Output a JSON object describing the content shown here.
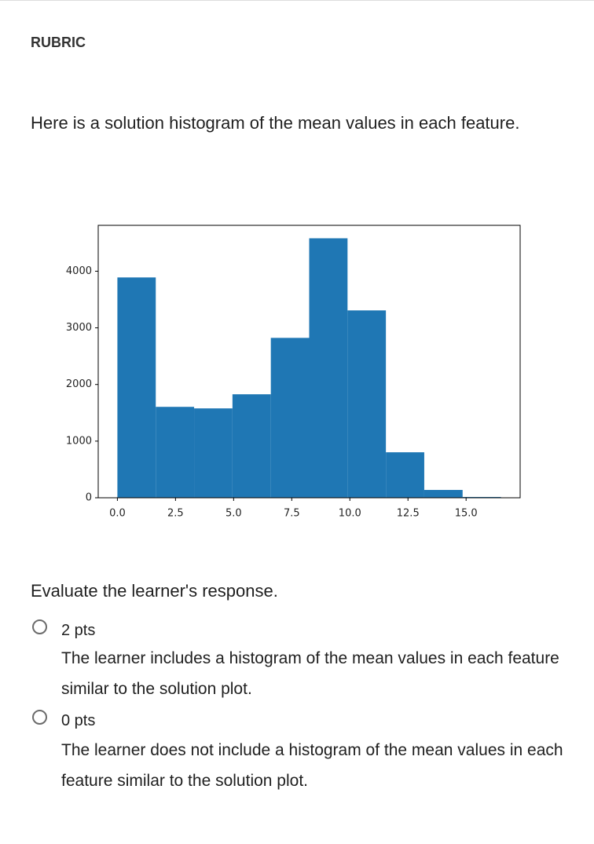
{
  "header": {
    "title": "RUBRIC"
  },
  "prompt": "Here is a solution histogram of the mean values in each feature.",
  "chart_data": {
    "type": "histogram",
    "bins": [
      0,
      1.65,
      3.3,
      4.95,
      6.6,
      8.25,
      9.9,
      11.55,
      13.2,
      14.85,
      16.5
    ],
    "values": [
      3890,
      1605,
      1578,
      1827,
      2823,
      4581,
      3308,
      803,
      138,
      14
    ],
    "color": "#1f77b4",
    "xlim": [
      -0.825,
      17.325
    ],
    "ylim": [
      0,
      4810
    ],
    "xticks": [
      {
        "value": 0,
        "label": "0.0"
      },
      2.5,
      {
        "value": 5,
        "label": "5.0"
      },
      7.5,
      {
        "value": 10,
        "label": "10.0"
      },
      12.5,
      {
        "value": 15,
        "label": "15.0"
      }
    ],
    "yticks": [
      0,
      1000,
      2000,
      3000,
      4000
    ]
  },
  "question": "Evaluate the learner's response.",
  "options": [
    {
      "points": "2 pts",
      "description": "The learner includes a histogram of the mean values in each feature similar to the solution plot."
    },
    {
      "points": "0 pts",
      "description": "The learner does not include a histogram of the mean values in each feature similar to the solution plot."
    }
  ]
}
